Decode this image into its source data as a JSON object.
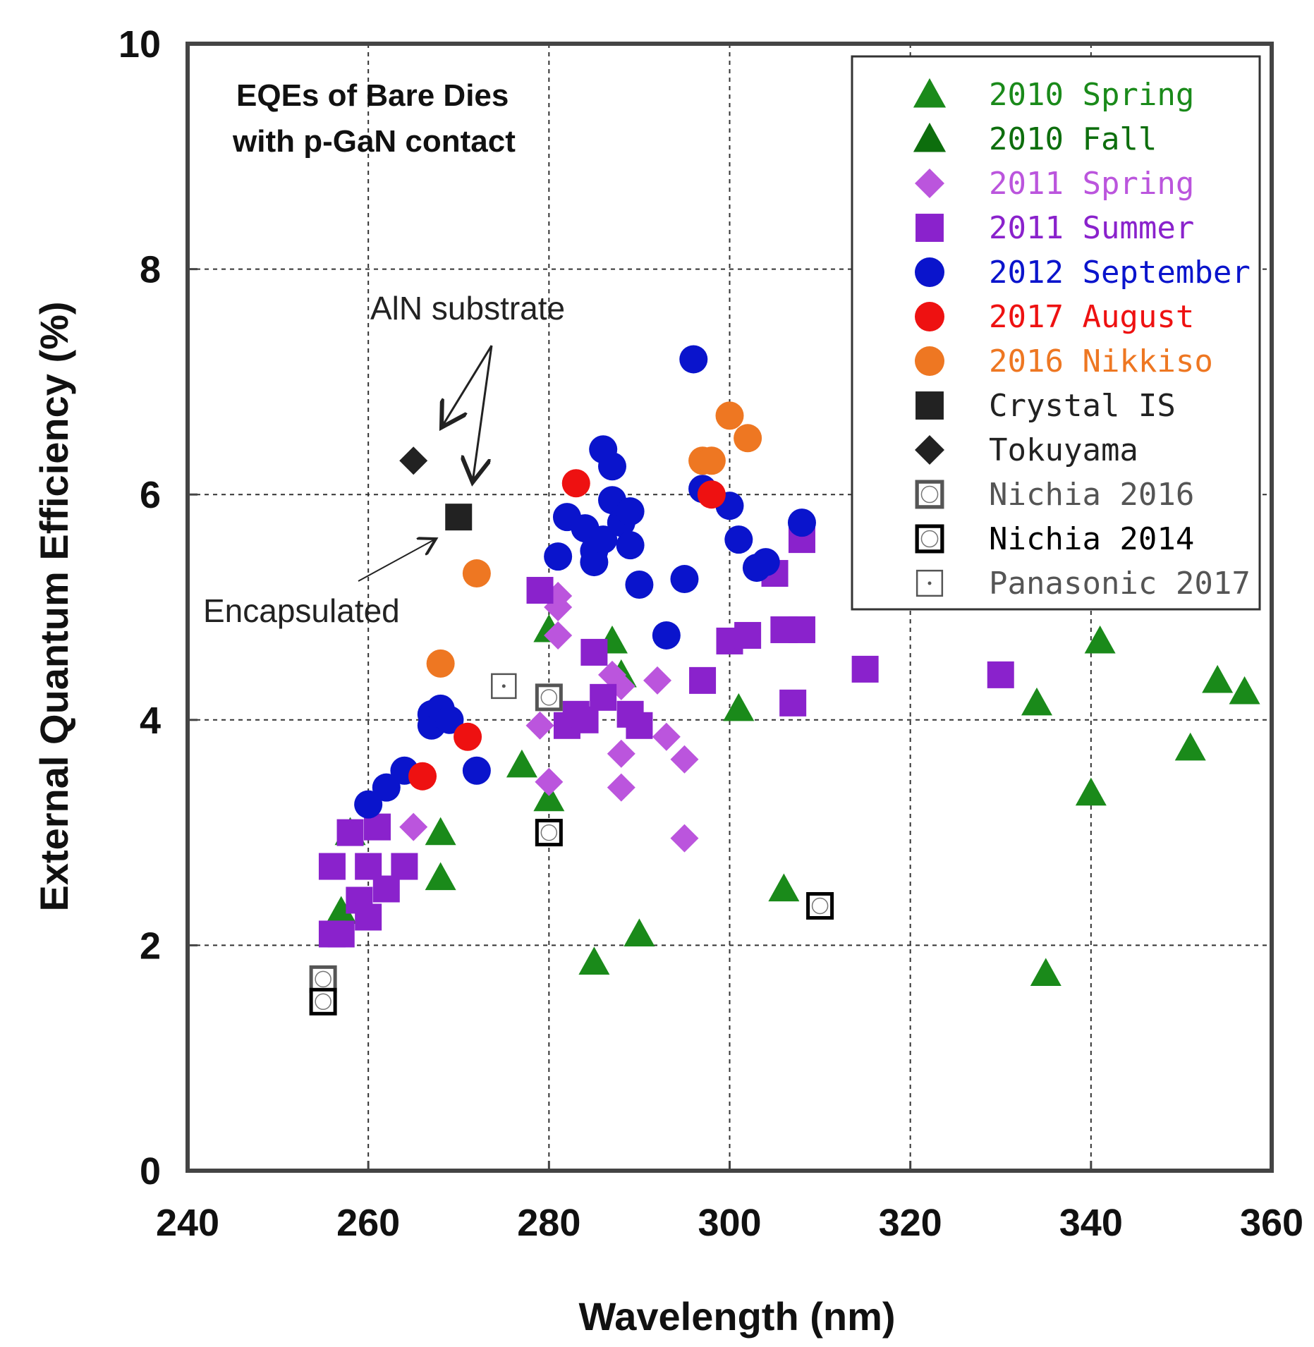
{
  "chart_data": {
    "type": "scatter",
    "title": "EQEs of Bare Dies with p-GaN contact",
    "title_lines": [
      "EQEs of Bare Dies",
      "with p-GaN contact"
    ],
    "xlabel": "Wavelength (nm)",
    "ylabel": "External Quantum Efficiency (%)",
    "xlim": [
      240,
      360
    ],
    "ylim": [
      0,
      10
    ],
    "xticks": [
      "240",
      "260",
      "280",
      "300",
      "320",
      "340",
      "360"
    ],
    "yticks": [
      "0",
      "2",
      "4",
      "6",
      "8",
      "10"
    ],
    "grid": true,
    "legend_position": "top-right",
    "annotations": [
      {
        "text": "AlN substrate"
      },
      {
        "text": "Encapsulated"
      }
    ],
    "series": [
      {
        "name": "2010 Spring",
        "marker": "triangle",
        "color": "#1a8a1a",
        "points": [
          [
            257,
            2.3
          ],
          [
            258,
            3.0
          ],
          [
            268,
            3.0
          ],
          [
            268,
            2.6
          ],
          [
            277,
            3.6
          ],
          [
            280,
            3.3
          ],
          [
            280,
            4.8
          ],
          [
            287,
            4.7
          ],
          [
            288,
            4.4
          ],
          [
            290,
            2.1
          ],
          [
            285,
            1.85
          ],
          [
            306,
            2.5
          ],
          [
            301,
            4.1
          ],
          [
            334,
            4.15
          ],
          [
            335,
            1.75
          ],
          [
            340,
            3.35
          ],
          [
            341,
            4.7
          ],
          [
            351,
            3.75
          ],
          [
            354,
            4.35
          ],
          [
            357,
            4.25
          ]
        ]
      },
      {
        "name": "2010 Fall",
        "marker": "triangle",
        "color": "#0d6e0d",
        "points": []
      },
      {
        "name": "2011 Spring",
        "marker": "diamond",
        "color": "#bb55dd",
        "points": [
          [
            265,
            3.05
          ],
          [
            279,
            3.95
          ],
          [
            280,
            3.45
          ],
          [
            281,
            4.75
          ],
          [
            281,
            5.0
          ],
          [
            281,
            5.1
          ],
          [
            287,
            4.4
          ],
          [
            288,
            4.3
          ],
          [
            288,
            3.7
          ],
          [
            288,
            3.4
          ],
          [
            292,
            4.35
          ],
          [
            293,
            3.85
          ],
          [
            295,
            3.65
          ],
          [
            295,
            2.95
          ]
        ]
      },
      {
        "name": "2011 Summer",
        "marker": "square",
        "color": "#8a22cc",
        "points": [
          [
            256,
            2.7
          ],
          [
            256,
            2.1
          ],
          [
            257,
            2.1
          ],
          [
            258,
            3.0
          ],
          [
            259,
            2.4
          ],
          [
            260,
            2.7
          ],
          [
            260,
            2.25
          ],
          [
            261,
            3.05
          ],
          [
            262,
            2.5
          ],
          [
            264,
            2.7
          ],
          [
            279,
            5.15
          ],
          [
            282,
            3.95
          ],
          [
            283,
            4.05
          ],
          [
            284,
            4.0
          ],
          [
            285,
            4.6
          ],
          [
            286,
            4.2
          ],
          [
            289,
            4.05
          ],
          [
            290,
            3.95
          ],
          [
            297,
            4.35
          ],
          [
            300,
            4.7
          ],
          [
            302,
            4.75
          ],
          [
            305,
            5.3
          ],
          [
            306,
            4.8
          ],
          [
            307,
            4.15
          ],
          [
            308,
            4.8
          ],
          [
            308,
            5.6
          ],
          [
            315,
            4.45
          ],
          [
            330,
            4.4
          ]
        ]
      },
      {
        "name": "2012 September",
        "marker": "circle",
        "color": "#0a14cc",
        "points": [
          [
            260,
            3.25
          ],
          [
            262,
            3.4
          ],
          [
            264,
            3.55
          ],
          [
            267,
            3.95
          ],
          [
            267,
            4.05
          ],
          [
            268,
            4.1
          ],
          [
            269,
            4.0
          ],
          [
            272,
            3.55
          ],
          [
            281,
            5.45
          ],
          [
            282,
            5.8
          ],
          [
            284,
            5.7
          ],
          [
            285,
            5.5
          ],
          [
            285,
            5.4
          ],
          [
            286,
            5.6
          ],
          [
            286,
            6.4
          ],
          [
            287,
            6.25
          ],
          [
            287,
            5.95
          ],
          [
            288,
            5.75
          ],
          [
            289,
            5.55
          ],
          [
            289,
            5.85
          ],
          [
            290,
            5.2
          ],
          [
            293,
            4.75
          ],
          [
            295,
            5.25
          ],
          [
            296,
            7.2
          ],
          [
            297,
            6.05
          ],
          [
            300,
            5.9
          ],
          [
            301,
            5.6
          ],
          [
            303,
            5.35
          ],
          [
            304,
            5.4
          ],
          [
            308,
            5.75
          ]
        ]
      },
      {
        "name": "2017 August",
        "marker": "circle",
        "color": "#ee1111",
        "points": [
          [
            266,
            3.5
          ],
          [
            271,
            3.85
          ],
          [
            283,
            6.1
          ],
          [
            298,
            6.0
          ]
        ]
      },
      {
        "name": "2016 Nikkiso",
        "marker": "circle",
        "color": "#ee7722",
        "points": [
          [
            268,
            4.5
          ],
          [
            272,
            5.3
          ],
          [
            297,
            6.3
          ],
          [
            298,
            6.3
          ],
          [
            300,
            6.7
          ],
          [
            302,
            6.5
          ]
        ]
      },
      {
        "name": "Crystal IS",
        "marker": "square",
        "color": "#222222",
        "points": [
          [
            270,
            5.8
          ]
        ]
      },
      {
        "name": "Tokuyama",
        "marker": "diamond",
        "color": "#222222",
        "points": [
          [
            265,
            6.3
          ]
        ]
      },
      {
        "name": "Nichia 2016",
        "marker": "square-open-circle",
        "color": "#555555",
        "points": [
          [
            255,
            1.7
          ],
          [
            280,
            4.2
          ]
        ]
      },
      {
        "name": "Nichia 2014",
        "marker": "square-open-circle",
        "color": "#000000",
        "points": [
          [
            255,
            1.5
          ],
          [
            280,
            3.0
          ],
          [
            310,
            2.35
          ]
        ]
      },
      {
        "name": "Panasonic 2017",
        "marker": "square-open-dot",
        "color": "#555555",
        "points": [
          [
            275,
            4.3
          ]
        ]
      }
    ]
  }
}
